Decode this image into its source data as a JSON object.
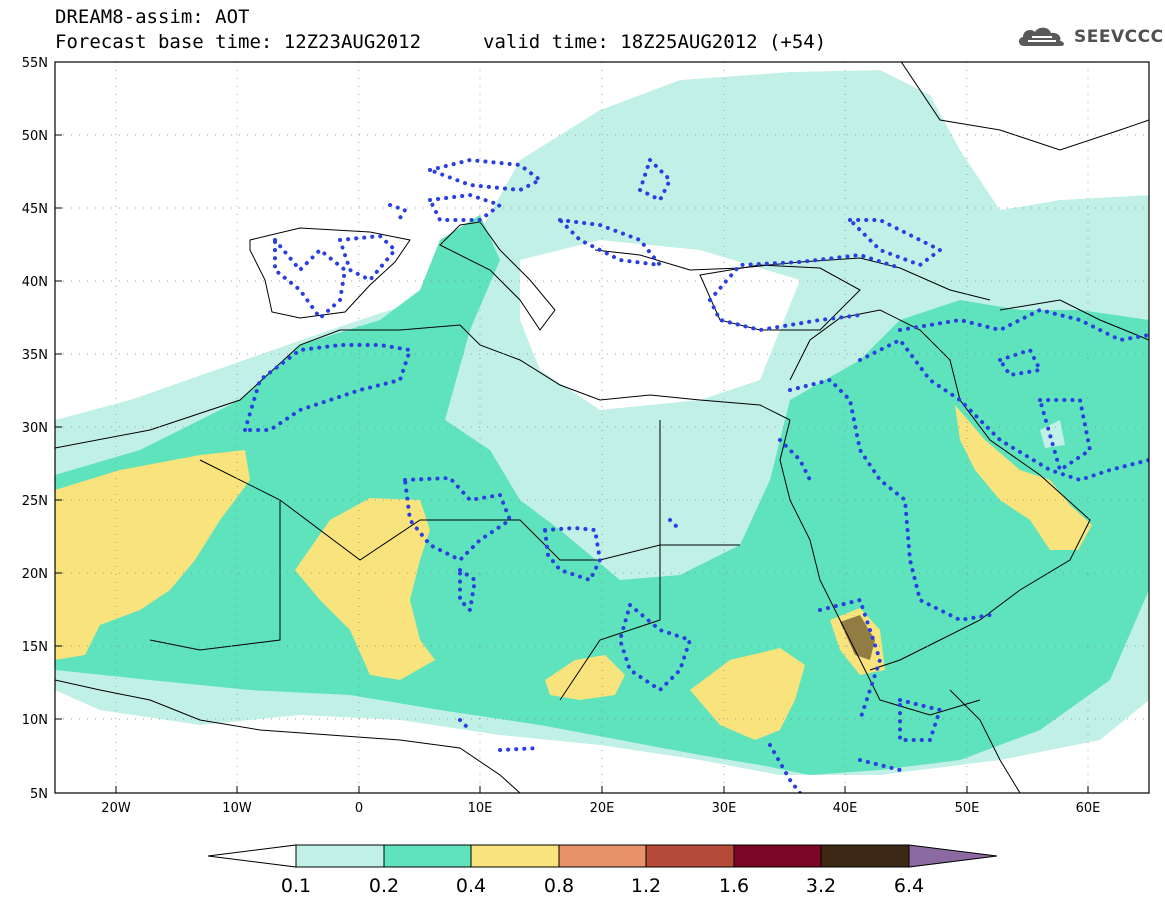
{
  "header": {
    "title_line_1": "DREAM8-assim: AOT",
    "title_line_2": "Forecast base time: 12Z23AUG2012",
    "valid_time": "valid time: 18Z25AUG2012 (+54)",
    "logo_text": "SEEVCCC",
    "logo_icon": "cloud-icon"
  },
  "map": {
    "lat_labels": [
      "55N",
      "50N",
      "45N",
      "40N",
      "35N",
      "30N",
      "25N",
      "20N",
      "15N",
      "10N",
      "5N"
    ],
    "lon_labels": [
      "20W",
      "10W",
      "0",
      "10E",
      "20E",
      "30E",
      "40E",
      "50E",
      "60E"
    ],
    "lat_range": [
      5,
      55
    ],
    "lon_range": [
      -25,
      65
    ],
    "variable": "AOT"
  },
  "colorbar": {
    "labels": [
      "0.1",
      "0.2",
      "0.4",
      "0.8",
      "1.2",
      "1.6",
      "3.2",
      "6.4"
    ],
    "colors": [
      "#ffffff",
      "#c1f0e6",
      "#5ee3bd",
      "#f8e37c",
      "#e8926a",
      "#b54a39",
      "#7b0626",
      "#3c2815",
      "#8a6aa0"
    ]
  },
  "colors": {
    "aot_0_1": "#c1f0e6",
    "aot_0_2": "#5ee3bd",
    "aot_0_4": "#f8e37c",
    "aot_0_8": "#e8926a",
    "contour_dots": "#2a3fe0",
    "coastline": "#000000"
  }
}
